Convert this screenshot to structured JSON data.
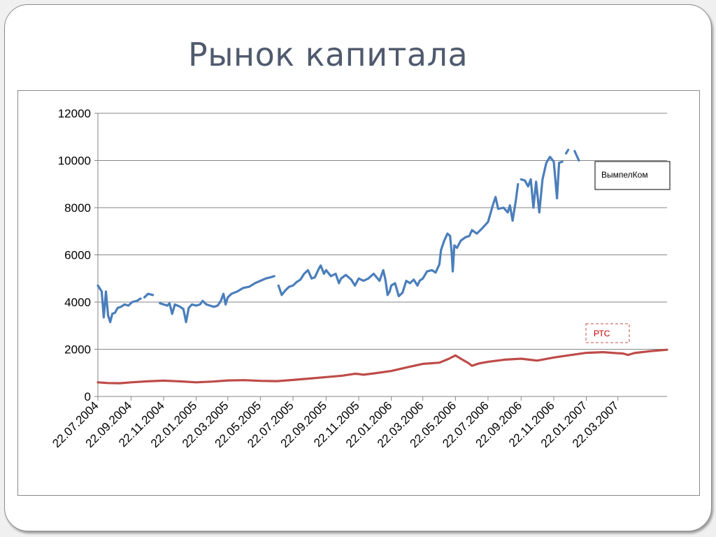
{
  "slide": {
    "title": "Рынок капитала"
  },
  "chart_data": {
    "type": "line",
    "title": "",
    "xlabel": "",
    "ylabel": "",
    "x_axis": {
      "start": "22.07.2004",
      "end": "22.06.2007",
      "tick_labels": [
        "22.07.2004",
        "22.09.2004",
        "22.11.2004",
        "22.01.2005",
        "22.03.2005",
        "22.05.2005",
        "22.07.2005",
        "22.09.2005",
        "22.11.2005",
        "22.01.2006",
        "22.03.2006",
        "22.05.2006",
        "22.07.2006",
        "22.09.2006",
        "22.11.2006",
        "22.01.2007",
        "22.03.2007"
      ]
    },
    "y_axis": {
      "ylim": [
        0,
        12000
      ],
      "tick_labels": [
        "0",
        "2000",
        "4000",
        "6000",
        "8000",
        "10000",
        "12000"
      ],
      "grid": true
    },
    "legend": "none",
    "series": [
      {
        "name": "ВымпелКом",
        "color": "#4a7ebb",
        "points": [
          [
            "22.07.2004",
            4700
          ],
          [
            "29.07.2004",
            4450
          ],
          [
            "02.08.2004",
            3350
          ],
          [
            "06.08.2004",
            4450
          ],
          [
            "10.08.2004",
            3450
          ],
          [
            "14.08.2004",
            3150
          ],
          [
            "18.08.2004",
            3500
          ],
          [
            "23.08.2004",
            3550
          ],
          [
            "28.08.2004",
            3750
          ],
          [
            "03.09.2004",
            3800
          ],
          [
            "10.09.2004",
            3900
          ],
          [
            "17.09.2004",
            3850
          ],
          [
            "24.09.2004",
            4000
          ],
          [
            "03.10.2004",
            4050
          ],
          [
            "10.10.2004",
            4150
          ],
          [
            "14.10.2004",
            null
          ],
          [
            "17.10.2004",
            4200
          ],
          [
            "24.10.2004",
            4350
          ],
          [
            "02.11.2004",
            4300
          ],
          [
            "09.11.2004",
            null
          ],
          [
            "15.11.2004",
            3950
          ],
          [
            "22.11.2004",
            3900
          ],
          [
            "29.11.2004",
            3850
          ],
          [
            "03.12.2004",
            3950
          ],
          [
            "08.12.2004",
            3500
          ],
          [
            "13.12.2004",
            3900
          ],
          [
            "18.12.2004",
            3850
          ],
          [
            "23.12.2004",
            3800
          ],
          [
            "29.12.2004",
            3700
          ],
          [
            "03.01.2005",
            3150
          ],
          [
            "08.01.2005",
            3750
          ],
          [
            "14.01.2005",
            3900
          ],
          [
            "22.01.2005",
            3850
          ],
          [
            "29.01.2005",
            3900
          ],
          [
            "03.02.2005",
            4050
          ],
          [
            "10.02.2005",
            3900
          ],
          [
            "17.02.2005",
            3850
          ],
          [
            "24.02.2005",
            3800
          ],
          [
            "03.03.2005",
            3850
          ],
          [
            "09.03.2005",
            4050
          ],
          [
            "14.03.2005",
            4350
          ],
          [
            "18.03.2005",
            3900
          ],
          [
            "22.03.2005",
            4200
          ],
          [
            "29.03.2005",
            4350
          ],
          [
            "09.04.2005",
            4450
          ],
          [
            "20.04.2005",
            4600
          ],
          [
            "01.05.2005",
            4650
          ],
          [
            "12.05.2005",
            4800
          ],
          [
            "22.05.2005",
            4900
          ],
          [
            "01.06.2005",
            5000
          ],
          [
            "10.06.2005",
            5050
          ],
          [
            "17.06.2005",
            5100
          ],
          [
            "21.06.2005",
            null
          ],
          [
            "25.06.2005",
            4700
          ],
          [
            "01.07.2005",
            4300
          ],
          [
            "08.07.2005",
            4500
          ],
          [
            "15.07.2005",
            4650
          ],
          [
            "22.07.2005",
            4700
          ],
          [
            "29.07.2005",
            4850
          ],
          [
            "05.08.2005",
            4950
          ],
          [
            "12.08.2005",
            5200
          ],
          [
            "19.08.2005",
            5350
          ],
          [
            "26.08.2005",
            5000
          ],
          [
            "01.09.2005",
            5050
          ],
          [
            "08.09.2005",
            5400
          ],
          [
            "12.09.2005",
            5550
          ],
          [
            "18.09.2005",
            5200
          ],
          [
            "22.09.2005",
            5350
          ],
          [
            "01.10.2005",
            5100
          ],
          [
            "10.10.2005",
            5200
          ],
          [
            "16.10.2005",
            4800
          ],
          [
            "20.10.2005",
            5000
          ],
          [
            "29.10.2005",
            5150
          ],
          [
            "08.11.2005",
            4950
          ],
          [
            "15.11.2005",
            4700
          ],
          [
            "22.11.2005",
            5000
          ],
          [
            "01.12.2005",
            4900
          ],
          [
            "10.12.2005",
            5000
          ],
          [
            "20.12.2005",
            5200
          ],
          [
            "31.12.2005",
            4900
          ],
          [
            "07.01.2006",
            5350
          ],
          [
            "11.01.2006",
            4950
          ],
          [
            "15.01.2006",
            4300
          ],
          [
            "19.01.2006",
            4450
          ],
          [
            "22.01.2006",
            4700
          ],
          [
            "29.01.2006",
            4800
          ],
          [
            "05.02.2006",
            4250
          ],
          [
            "12.02.2006",
            4400
          ],
          [
            "19.02.2006",
            4900
          ],
          [
            "26.02.2006",
            4800
          ],
          [
            "05.03.2006",
            4950
          ],
          [
            "12.03.2006",
            4700
          ],
          [
            "16.03.2006",
            4900
          ],
          [
            "22.03.2006",
            5000
          ],
          [
            "30.03.2006",
            5300
          ],
          [
            "08.04.2006",
            5350
          ],
          [
            "15.04.2006",
            5250
          ],
          [
            "22.04.2006",
            5600
          ],
          [
            "25.04.2006",
            6200
          ],
          [
            "01.05.2006",
            6600
          ],
          [
            "07.05.2006",
            6900
          ],
          [
            "12.05.2006",
            6800
          ],
          [
            "15.05.2006",
            6100
          ],
          [
            "17.05.2006",
            5300
          ],
          [
            "20.05.2006",
            6400
          ],
          [
            "25.05.2006",
            6300
          ],
          [
            "01.06.2006",
            6600
          ],
          [
            "10.06.2006",
            6750
          ],
          [
            "17.06.2006",
            6800
          ],
          [
            "22.06.2006",
            7050
          ],
          [
            "01.07.2006",
            6900
          ],
          [
            "10.07.2006",
            7100
          ],
          [
            "22.07.2006",
            7400
          ],
          [
            "31.07.2006",
            8100
          ],
          [
            "05.08.2006",
            8450
          ],
          [
            "10.08.2006",
            7950
          ],
          [
            "20.08.2006",
            8000
          ],
          [
            "28.08.2006",
            7800
          ],
          [
            "01.09.2006",
            8100
          ],
          [
            "06.09.2006",
            7450
          ],
          [
            "12.09.2006",
            8300
          ],
          [
            "16.09.2006",
            9000
          ],
          [
            "19.09.2006",
            null
          ],
          [
            "22.09.2006",
            9200
          ],
          [
            "29.09.2006",
            9150
          ],
          [
            "05.10.2006",
            8900
          ],
          [
            "10.10.2006",
            9200
          ],
          [
            "15.10.2006",
            8000
          ],
          [
            "20.10.2006",
            9100
          ],
          [
            "26.10.2006",
            7800
          ],
          [
            "01.11.2006",
            9200
          ],
          [
            "08.11.2006",
            9900
          ],
          [
            "15.11.2006",
            10150
          ],
          [
            "22.11.2006",
            9950
          ],
          [
            "28.11.2006",
            8400
          ],
          [
            "02.12.2006",
            9900
          ],
          [
            "08.12.2006",
            9950
          ],
          [
            "12.12.2006",
            null
          ],
          [
            "15.12.2006",
            10300
          ],
          [
            "19.12.2006",
            10450
          ],
          [
            "23.12.2006",
            null
          ],
          [
            "31.12.2006",
            10400
          ],
          [
            "08.01.2007",
            10000
          ]
        ]
      },
      {
        "name": "РТС",
        "color": "#be4b48",
        "points": [
          [
            "22.07.2004",
            600
          ],
          [
            "10.08.2004",
            570
          ],
          [
            "01.09.2004",
            560
          ],
          [
            "22.09.2004",
            600
          ],
          [
            "22.10.2004",
            640
          ],
          [
            "22.11.2004",
            670
          ],
          [
            "22.12.2004",
            640
          ],
          [
            "22.01.2005",
            600
          ],
          [
            "22.02.2005",
            630
          ],
          [
            "22.03.2005",
            680
          ],
          [
            "22.04.2005",
            690
          ],
          [
            "22.05.2005",
            660
          ],
          [
            "22.06.2005",
            650
          ],
          [
            "22.07.2005",
            700
          ],
          [
            "22.08.2005",
            760
          ],
          [
            "22.09.2005",
            820
          ],
          [
            "22.10.2005",
            880
          ],
          [
            "15.11.2005",
            960
          ],
          [
            "22.11.2005",
            950
          ],
          [
            "01.12.2005",
            920
          ],
          [
            "22.12.2005",
            980
          ],
          [
            "22.01.2006",
            1080
          ],
          [
            "22.02.2006",
            1240
          ],
          [
            "22.03.2006",
            1380
          ],
          [
            "22.04.2006",
            1430
          ],
          [
            "10.05.2006",
            1600
          ],
          [
            "22.05.2006",
            1740
          ],
          [
            "01.06.2006",
            1600
          ],
          [
            "15.06.2006",
            1420
          ],
          [
            "22.06.2006",
            1300
          ],
          [
            "05.07.2006",
            1400
          ],
          [
            "22.07.2006",
            1470
          ],
          [
            "22.08.2006",
            1560
          ],
          [
            "22.09.2006",
            1600
          ],
          [
            "22.10.2006",
            1520
          ],
          [
            "22.11.2006",
            1650
          ],
          [
            "22.12.2006",
            1750
          ],
          [
            "22.01.2007",
            1850
          ],
          [
            "22.02.2007",
            1880
          ],
          [
            "22.03.2007",
            1830
          ],
          [
            "01.04.2007",
            1820
          ],
          [
            "10.04.2007",
            1760
          ],
          [
            "22.04.2007",
            1840
          ],
          [
            "22.05.2007",
            1920
          ],
          [
            "22.06.2007",
            1980
          ]
        ]
      }
    ],
    "annotations": [
      {
        "text": "ВымпелКом",
        "series": "ВымпелКом",
        "border_color": "#000000",
        "border_style": "solid",
        "text_color": "#000000"
      },
      {
        "text": "РТС",
        "series": "РТС",
        "border_color": "#c0504d",
        "border_style": "dashed",
        "text_color": "#c00000"
      }
    ]
  }
}
